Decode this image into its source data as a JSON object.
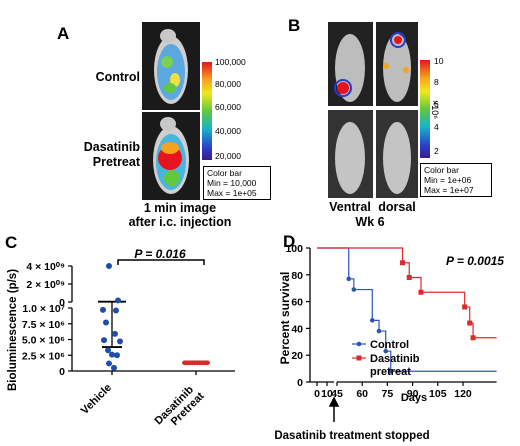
{
  "panel_a": {
    "letter": "A",
    "label_control": "Control",
    "label_treat_1": "Dasatinib",
    "label_treat_2": "Pretreat",
    "colorbar_ticks": [
      "100,000",
      "80,000",
      "60,000",
      "40,000",
      "20,000"
    ],
    "legend": [
      "Color bar",
      "Min = 10,000",
      "Max = 1e+05"
    ],
    "caption_1": "1 min image",
    "caption_2": "after i.c. injection"
  },
  "panel_b": {
    "letter": "B",
    "colorbar_ticks": [
      "10",
      "8",
      "6",
      "4",
      "2"
    ],
    "colorbar_unit": "×10⁶",
    "legend": [
      "Color bar",
      "Min = 1e+06",
      "Max = 1e+07"
    ],
    "view_ventral": "Ventral",
    "view_dorsal": "dorsal",
    "week": "Wk 6"
  },
  "panel_c": {
    "letter": "C",
    "p_value": "P = 0.016",
    "colors": {
      "vehicle": "#1f4ea8",
      "pretreat": "#d92b2b"
    },
    "chart_data": {
      "type": "scatter",
      "ylabel": "Bioluminescence (p/s)",
      "categories": [
        "Vehicle",
        "Dasatinib Pretreat"
      ],
      "yticks_upper": [
        "4 × 10⁰⁹",
        "2 × 10⁰⁹",
        "0"
      ],
      "yticks_lower": [
        "1.0 × 10⁷",
        "7.5 × 10⁶",
        "5.0 × 10⁶",
        "2.5 × 10⁶",
        "0"
      ],
      "series": [
        {
          "name": "Vehicle",
          "values": [
            4000000000,
            11200000,
            9700000,
            9600000,
            7700000,
            5900000,
            4900000,
            4700000,
            3300000,
            2600000,
            2500000,
            1200000,
            500000
          ],
          "mean": 11000000,
          "sd_low": 3800000
        },
        {
          "name": "Dasatinib Pretreat",
          "values": [
            1300000,
            1300000,
            1300000,
            1300000,
            1300000,
            1300000,
            1300000,
            1300000,
            1300000,
            1300000
          ]
        }
      ]
    }
  },
  "panel_d": {
    "letter": "D",
    "p_value": "P = 0.0015",
    "annotation": "Dasatinib treatment stopped",
    "colors": {
      "control": "#2c55b8",
      "pretreat": "#d92b2b"
    },
    "chart_data": {
      "type": "line",
      "title": "",
      "xlabel": "Days",
      "ylabel": "Percent survival",
      "xticks": [
        0,
        10,
        45,
        60,
        75,
        90,
        105,
        120
      ],
      "yticks": [
        0,
        20,
        40,
        60,
        80,
        100
      ],
      "series": [
        {
          "name": "Control",
          "x": [
            0,
            52,
            52,
            55,
            55,
            66,
            66,
            70,
            70,
            74,
            74,
            77,
            77,
            140
          ],
          "y": [
            100,
            100,
            77,
            77,
            69,
            69,
            46,
            46,
            38,
            38,
            23,
            23,
            8,
            8
          ]
        },
        {
          "name": "Dasatinib pretreat",
          "x": [
            0,
            84,
            84,
            88,
            88,
            95,
            95,
            121,
            121,
            124,
            124,
            126,
            126,
            140
          ],
          "y": [
            100,
            100,
            89,
            89,
            78,
            78,
            67,
            67,
            56,
            56,
            44,
            44,
            33,
            33
          ]
        }
      ],
      "legend": [
        "Control",
        "Dasatinib",
        "pretreat"
      ]
    }
  }
}
